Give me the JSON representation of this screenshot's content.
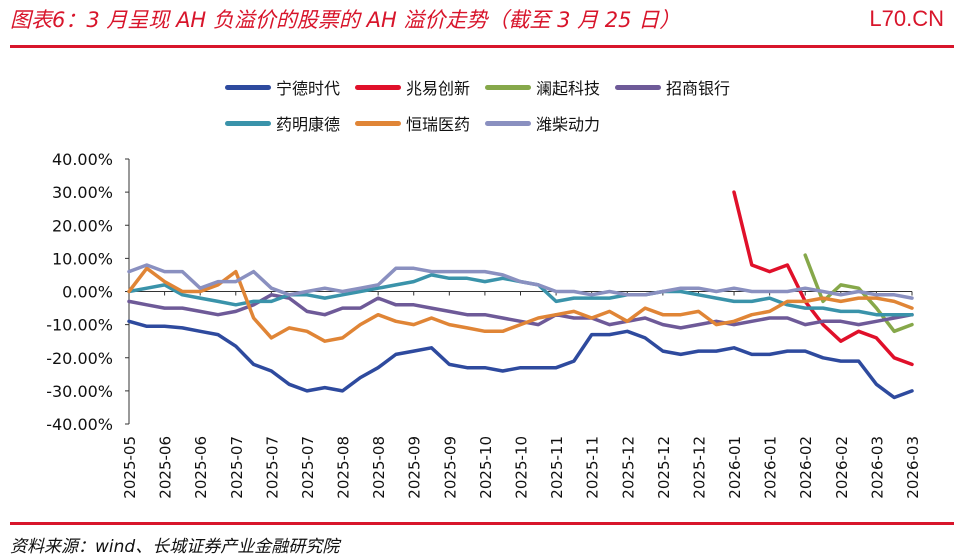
{
  "header": {
    "title": "图表6：3 月呈现 AH 负溢价的股票的 AH 溢价走势（截至 3 月 25 日）",
    "watermark": "L70.CN"
  },
  "footer": {
    "source": "资料来源：wind、长城证券产业金融研究院"
  },
  "chart_data": {
    "type": "line",
    "title": "",
    "xlabel": "",
    "ylabel": "",
    "ylim": [
      -40,
      40
    ],
    "ytick_values": [
      40,
      30,
      20,
      10,
      0,
      -10,
      -20,
      -30,
      -40
    ],
    "ytick_labels": [
      "40.00%",
      "30.00%",
      "20.00%",
      "10.00%",
      "0.00%",
      "-10.00%",
      "-20.00%",
      "-30.00%",
      "-40.00%"
    ],
    "xtick_labels": [
      "2025-05",
      "2025-06",
      "2025-06",
      "2025-07",
      "2025-07",
      "2025-07",
      "2025-08",
      "2025-08",
      "2025-09",
      "2025-09",
      "2025-10",
      "2025-10",
      "2025-11",
      "2025-11",
      "2025-12",
      "2025-12",
      "2025-12",
      "2026-01",
      "2026-01",
      "2026-02",
      "2026-02",
      "2026-03",
      "2026-03"
    ],
    "grid": false,
    "legend_placement": "top",
    "unit": "%",
    "dates": [
      "2025-05-21",
      "2025-05-28",
      "2025-06-04",
      "2025-06-11",
      "2025-06-18",
      "2025-06-25",
      "2025-07-02",
      "2025-07-09",
      "2025-07-16",
      "2025-07-23",
      "2025-07-30",
      "2025-08-06",
      "2025-08-13",
      "2025-08-20",
      "2025-08-27",
      "2025-09-03",
      "2025-09-10",
      "2025-09-17",
      "2025-09-24",
      "2025-10-01",
      "2025-10-08",
      "2025-10-15",
      "2025-10-22",
      "2025-10-29",
      "2025-11-05",
      "2025-11-12",
      "2025-11-19",
      "2025-11-26",
      "2025-12-03",
      "2025-12-10",
      "2025-12-17",
      "2025-12-24",
      "2025-12-31",
      "2026-01-07",
      "2026-01-14",
      "2026-01-21",
      "2026-01-28",
      "2026-02-04",
      "2026-02-11",
      "2026-02-18",
      "2026-02-25",
      "2026-03-04",
      "2026-03-11",
      "2026-03-18",
      "2026-03-25"
    ],
    "series": [
      {
        "name": "宁德时代",
        "color": "#2E4A9E",
        "values": [
          -9,
          -10.5,
          -10.5,
          -11,
          -12,
          -13,
          -16.5,
          -22,
          -24,
          -28,
          -30,
          -29,
          -30,
          -26,
          -23,
          -19,
          -18,
          -17,
          -22,
          -23,
          -23,
          -24,
          -23,
          -23,
          -23,
          -21,
          -13,
          -13,
          -12,
          -14,
          -18,
          -19,
          -18,
          -18,
          -17,
          -19,
          -19,
          -18,
          -18,
          -20,
          -21,
          -21,
          -28,
          -32,
          -30
        ]
      },
      {
        "name": "兆易创新",
        "color": "#E0102A",
        "values": [
          null,
          null,
          null,
          null,
          null,
          null,
          null,
          null,
          null,
          null,
          null,
          null,
          null,
          null,
          null,
          null,
          null,
          null,
          null,
          null,
          null,
          null,
          null,
          null,
          null,
          null,
          null,
          null,
          null,
          null,
          null,
          null,
          null,
          null,
          30,
          8,
          6,
          8,
          -3,
          -10,
          -15,
          -12,
          -14,
          -20,
          -22
        ]
      },
      {
        "name": "澜起科技",
        "color": "#86A84A",
        "values": [
          null,
          null,
          null,
          null,
          null,
          null,
          null,
          null,
          null,
          null,
          null,
          null,
          null,
          null,
          null,
          null,
          null,
          null,
          null,
          null,
          null,
          null,
          null,
          null,
          null,
          null,
          null,
          null,
          null,
          null,
          null,
          null,
          null,
          null,
          null,
          null,
          null,
          null,
          11,
          -3,
          2,
          1,
          -5,
          -12,
          -10
        ]
      },
      {
        "name": "招商银行",
        "color": "#6E5A98",
        "values": [
          -3,
          -4,
          -5,
          -5,
          -6,
          -7,
          -6,
          -4,
          -1,
          -2,
          -6,
          -7,
          -5,
          -5,
          -2,
          -4,
          -4,
          -5,
          -6,
          -7,
          -7,
          -8,
          -9,
          -10,
          -7,
          -8,
          -8,
          -10,
          -9,
          -8,
          -10,
          -11,
          -10,
          -9,
          -10,
          -9,
          -8,
          -8,
          -10,
          -9,
          -9,
          -10,
          -9,
          -8,
          -7
        ]
      },
      {
        "name": "药明康德",
        "color": "#3A93AA",
        "values": [
          0,
          1,
          2,
          -1,
          -2,
          -3,
          -4,
          -3,
          -3,
          -1,
          -1,
          -2,
          -1,
          0,
          1,
          2,
          3,
          5,
          4,
          4,
          3,
          4,
          3,
          2,
          -3,
          -2,
          -2,
          -2,
          -1,
          -1,
          0,
          0,
          -1,
          -2,
          -3,
          -3,
          -2,
          -4,
          -5,
          -5,
          -6,
          -6,
          -7,
          -7,
          -7
        ]
      },
      {
        "name": "恒瑞医药",
        "color": "#E08536",
        "values": [
          0,
          7,
          3,
          0,
          0,
          2,
          6,
          -8,
          -14,
          -11,
          -12,
          -15,
          -14,
          -10,
          -7,
          -9,
          -10,
          -8,
          -10,
          -11,
          -12,
          -12,
          -10,
          -8,
          -7,
          -6,
          -8,
          -6,
          -9,
          -5,
          -7,
          -7,
          -6,
          -10,
          -9,
          -7,
          -6,
          -3,
          -3,
          -2,
          -3,
          -2,
          -2,
          -3,
          -5
        ]
      },
      {
        "name": "潍柴动力",
        "color": "#8A90C0",
        "values": [
          6,
          8,
          6,
          6,
          1,
          3,
          3,
          6,
          1,
          -1,
          0,
          1,
          0,
          1,
          2,
          7,
          7,
          6,
          6,
          6,
          6,
          5,
          3,
          2,
          0,
          0,
          -1,
          0,
          -1,
          -1,
          0,
          1,
          1,
          0,
          1,
          0,
          0,
          0,
          1,
          0,
          -1,
          0,
          -1,
          -1,
          -2
        ]
      }
    ]
  }
}
